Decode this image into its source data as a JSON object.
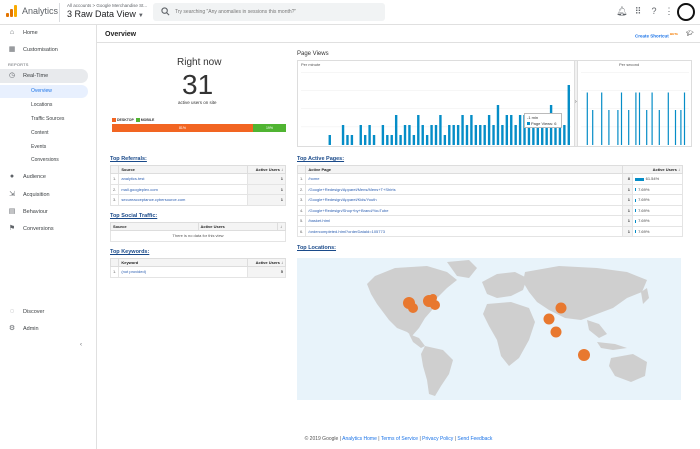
{
  "topbar": {
    "app_name": "Analytics",
    "breadcrumb": "All accounts > Google Merchandise St...",
    "view_name": "3 Raw Data View",
    "search_placeholder": "Try searching \"Any anomalies in sessions this month?\""
  },
  "sidebar": {
    "home": "Home",
    "customisation": "Customisation",
    "reports_header": "REPORTS",
    "realtime": "Real-Time",
    "realtime_items": [
      "Overview",
      "Locations",
      "Traffic Sources",
      "Content",
      "Events",
      "Conversions"
    ],
    "audience": "Audience",
    "acquisition": "Acquisition",
    "behaviour": "Behaviour",
    "conversions": "Conversions",
    "discover": "Discover",
    "admin": "Admin"
  },
  "header": {
    "title": "Overview",
    "shortcut": "Create Shortcut",
    "shortcut_badge": "BETA"
  },
  "right_now": {
    "label": "Right now",
    "count": "31",
    "sub": "active users on site",
    "desktop_label": "DESKTOP",
    "mobile_label": "MOBILE",
    "desktop_pct_text": "81%",
    "mobile_pct_text": "19%",
    "desktop_pct": 81,
    "mobile_pct": 19,
    "desktop_color": "#f26522",
    "mobile_color": "#50b432"
  },
  "page_views": {
    "title": "Page Views",
    "per_minute": "Per minute",
    "per_second": "Per second",
    "tooltip_time": "-1 min",
    "tooltip_label": "Page Views: 6",
    "bar_color": "#058dc7",
    "per_minute_values": [
      0,
      0,
      0,
      0,
      0,
      0,
      1,
      0,
      0,
      2,
      1,
      1,
      0,
      2,
      1,
      2,
      1,
      0,
      2,
      1,
      1,
      3,
      1,
      2,
      2,
      1,
      3,
      2,
      1,
      2,
      2,
      3,
      1,
      2,
      2,
      2,
      3,
      2,
      3,
      2,
      2,
      2,
      3,
      2,
      4,
      2,
      3,
      3,
      2,
      3,
      3,
      2,
      3,
      3,
      2,
      3,
      4,
      3,
      3,
      2,
      6
    ],
    "per_second_values": [
      0,
      0,
      0,
      3,
      0,
      0,
      2,
      0,
      0,
      0,
      0,
      3,
      0,
      0,
      0,
      2,
      0,
      0,
      0,
      0,
      2,
      0,
      3,
      0,
      0,
      0,
      2,
      0,
      0,
      0,
      3,
      0,
      3,
      0,
      0,
      0,
      2,
      0,
      0,
      3,
      0,
      0,
      0,
      2,
      0,
      0,
      0,
      0,
      3,
      0,
      0,
      0,
      2,
      0,
      0,
      2,
      0,
      3,
      0,
      0
    ]
  },
  "referrals": {
    "title": "Top Referrals:",
    "col_source": "Source",
    "col_users": "Active Users",
    "rows": [
      {
        "idx": "1.",
        "source": "analytics.test",
        "users": "1"
      },
      {
        "idx": "2.",
        "source": "mall.googleplex.com",
        "users": "1"
      },
      {
        "idx": "3.",
        "source": "secureacceptance.cybersource.com",
        "users": "1"
      }
    ]
  },
  "social": {
    "title": "Top Social Traffic:",
    "col_source": "Source",
    "col_users": "Active Users",
    "empty": "There is no data for this view"
  },
  "keywords": {
    "title": "Top Keywords:",
    "col_keyword": "Keyword",
    "col_users": "Active Users",
    "rows": [
      {
        "idx": "1.",
        "keyword": "(not provided)",
        "users": "5"
      }
    ]
  },
  "active_pages": {
    "title": "Top Active Pages:",
    "col_page": "Active Page",
    "col_users": "Active Users",
    "rows": [
      {
        "idx": "1.",
        "page": "/home",
        "users": "8",
        "pct": "61.54%",
        "pct_num": 61.54
      },
      {
        "idx": "2.",
        "page": "/Google+Redesign/Apparel/Mens/Mens+T+Shirts",
        "users": "1",
        "pct": "7.69%",
        "pct_num": 7.69
      },
      {
        "idx": "3.",
        "page": "/Google+Redesign/Apparel/Kids/Youth",
        "users": "1",
        "pct": "7.69%",
        "pct_num": 7.69
      },
      {
        "idx": "4.",
        "page": "/Google+Redesign/Shop+by+Brand/YouTube",
        "users": "1",
        "pct": "7.69%",
        "pct_num": 7.69
      },
      {
        "idx": "5.",
        "page": "/basket.html",
        "users": "1",
        "pct": "7.69%",
        "pct_num": 7.69
      },
      {
        "idx": "6.",
        "page": "/ordercompleted.html?orderDataId=105773",
        "users": "1",
        "pct": "7.69%",
        "pct_num": 7.69
      }
    ]
  },
  "locations": {
    "title": "Top Locations:",
    "marker_color": "#e8782f"
  },
  "footer": {
    "copyright": "© 2019 Google",
    "home": "Analytics Home",
    "terms": "Terms of Service",
    "privacy": "Privacy Policy",
    "feedback": "Send Feedback"
  }
}
